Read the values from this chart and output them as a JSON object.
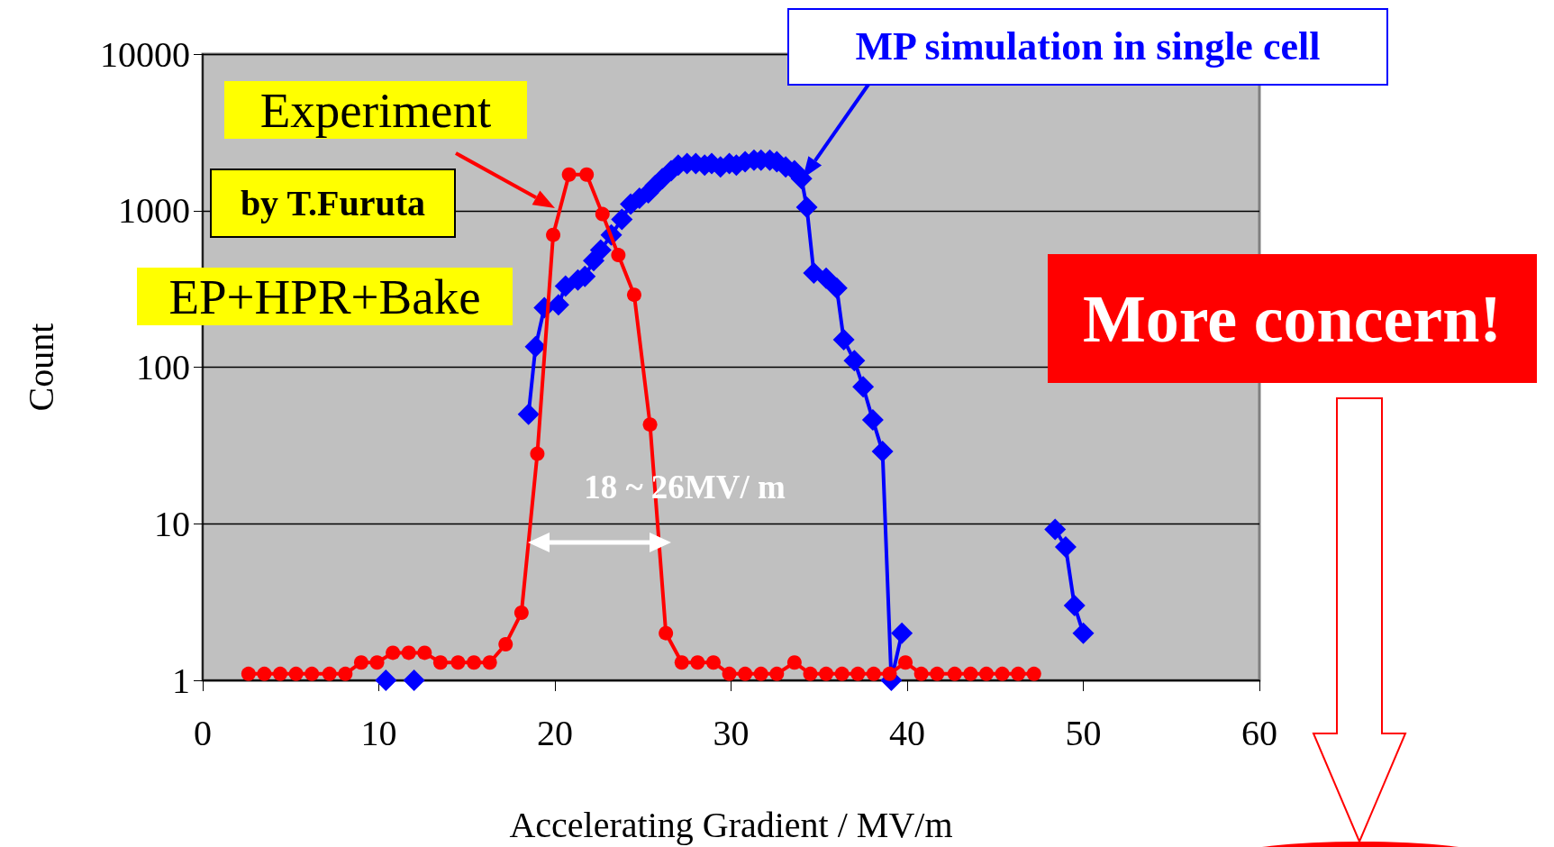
{
  "chart_data": {
    "type": "line",
    "xlabel": "Accelerating Gradient / MV/m",
    "ylabel": "Count",
    "xlim": [
      0,
      60
    ],
    "xticks": [
      0,
      10,
      20,
      30,
      40,
      50,
      60
    ],
    "ylim": [
      1,
      10000
    ],
    "yticks": [
      1,
      10,
      100,
      1000,
      10000
    ],
    "log": "y",
    "grid": "y",
    "line_style": "solid",
    "series": [
      {
        "color": "#ff0000",
        "marker": "circle",
        "x": [
          2.6,
          3.5,
          4.4,
          5.3,
          6.2,
          7.2,
          8.1,
          9.0,
          9.9,
          10.8,
          11.7,
          12.6,
          13.5,
          14.5,
          15.4,
          16.3,
          17.2,
          18.1,
          19.0,
          19.9,
          20.8,
          21.8,
          22.7,
          23.6,
          24.5,
          25.4,
          26.3,
          27.2,
          28.1,
          29.0,
          29.9,
          30.8,
          31.7,
          32.6,
          33.6,
          34.5,
          35.4,
          36.3,
          37.2,
          38.1,
          39.0,
          39.9,
          40.8,
          41.7,
          42.7,
          43.6,
          44.5,
          45.4,
          46.3,
          47.2
        ],
        "values": [
          1.1,
          1.1,
          1.1,
          1.1,
          1.1,
          1.1,
          1.1,
          1.3,
          1.3,
          1.5,
          1.5,
          1.5,
          1.3,
          1.3,
          1.3,
          1.3,
          1.7,
          2.7,
          28,
          700,
          1700,
          1700,
          950,
          520,
          290,
          43,
          2,
          1.3,
          1.3,
          1.3,
          1.1,
          1.1,
          1.1,
          1.1,
          1.3,
          1.1,
          1.1,
          1.1,
          1.1,
          1.1,
          1.1,
          1.3,
          1.1,
          1.1,
          1.1,
          1.1,
          1.1,
          1.1,
          1.1,
          1.1
        ]
      },
      {
        "color": "#0000ff",
        "marker": "diamond",
        "x": [
          10.4,
          11.2,
          12.0,
          15.0,
          18.5,
          18.9,
          19.4,
          20.2,
          20.6,
          21.3,
          21.7,
          22.2,
          22.6,
          23.2,
          23.8,
          24.3,
          24.8,
          25.3,
          25.7,
          26.1,
          26.6,
          27.0,
          27.5,
          28.0,
          28.5,
          28.9,
          29.4,
          29.9,
          30.3,
          30.8,
          31.3,
          31.7,
          32.2,
          32.6,
          33.1,
          33.6,
          34.0,
          34.3,
          34.7,
          35.4,
          36.0,
          36.4,
          37.0,
          37.5,
          38.05,
          38.6,
          39.1,
          39.7,
          44.0,
          48.4,
          49.0,
          49.5,
          50.0
        ],
        "values": [
          1,
          null,
          1,
          null,
          50,
          135,
          240,
          250,
          330,
          360,
          380,
          480,
          560,
          700,
          880,
          1100,
          1200,
          1300,
          1450,
          1600,
          1800,
          1950,
          2000,
          2000,
          1950,
          2000,
          1900,
          2000,
          1950,
          2050,
          2100,
          2100,
          2100,
          2050,
          1900,
          1800,
          1600,
          1050,
          400,
          370,
          320,
          150,
          110,
          75,
          46,
          29,
          1,
          2,
          null,
          9.2,
          7.1,
          3,
          2
        ]
      }
    ],
    "annotations": [
      "Experiment",
      "by T.Furuta",
      "EP+HPR+Bake",
      "MP simulation in single cell",
      "18 ~ 26MV/ m",
      "More concern!"
    ]
  }
}
